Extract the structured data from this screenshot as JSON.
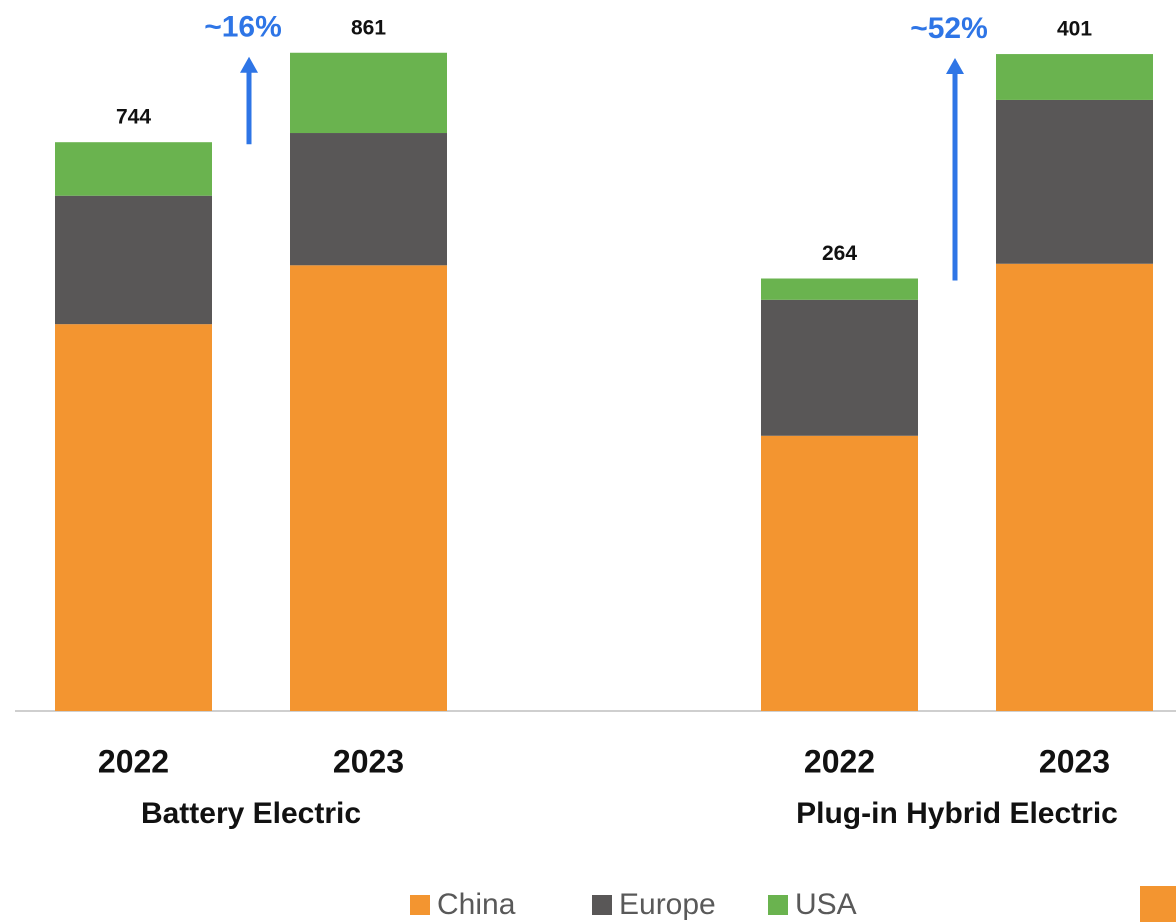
{
  "chart_data": [
    {
      "type": "bar",
      "stacked": true,
      "xlabel": "Battery Electric",
      "annotation": "~16%",
      "categories": [
        "2022",
        "2023"
      ],
      "totals": [
        744,
        861
      ],
      "ylim": [
        0,
        930
      ],
      "series": [
        {
          "values": [
            506,
            583
          ]
        },
        {
          "values": [
            168,
            173
          ]
        },
        {
          "values": [
            70,
            105
          ]
        }
      ]
    },
    {
      "type": "bar",
      "stacked": true,
      "xlabel": "Plug-in Hybrid Electric",
      "annotation": "~52%",
      "categories": [
        "2022",
        "2023"
      ],
      "totals": [
        264,
        401
      ],
      "ylim": [
        0,
        434
      ],
      "series": [
        {
          "values": [
            168,
            273
          ]
        },
        {
          "values": [
            83,
            100
          ]
        },
        {
          "values": [
            13,
            28
          ]
        }
      ]
    }
  ],
  "legend": [
    {
      "name": "China",
      "color": "#f39530"
    },
    {
      "name": "Europe",
      "color": "#595757"
    },
    {
      "name": "USA",
      "color": "#6ab34f"
    }
  ]
}
